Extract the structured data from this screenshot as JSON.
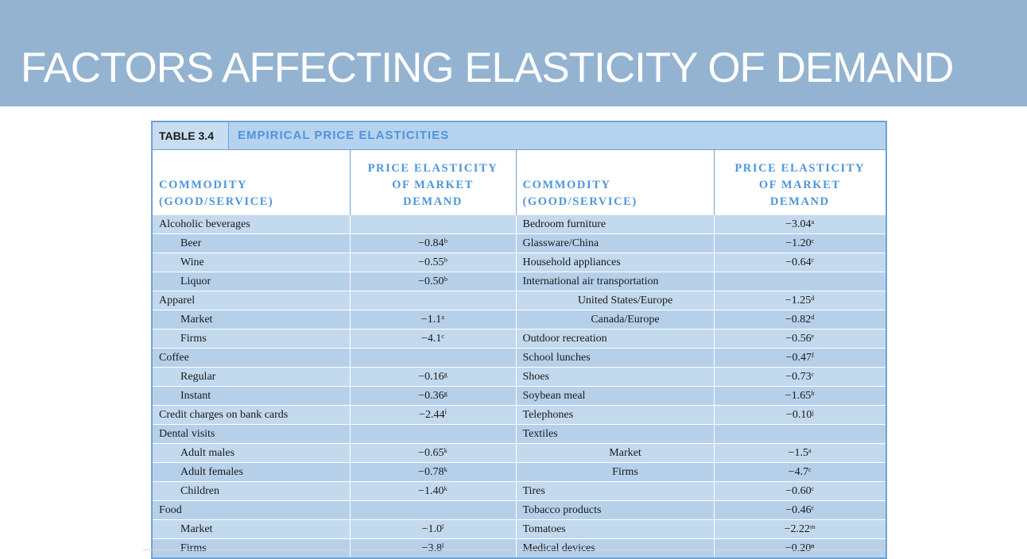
{
  "slide": {
    "title": "FACTORS AFFECTING ELASTICITY OF DEMAND"
  },
  "table": {
    "number": "TABLE 3.4",
    "title": "EMPIRICAL PRICE ELASTICITIES",
    "headers": {
      "commodity": [
        "COMMODITY",
        "(GOOD/SERVICE)"
      ],
      "elasticity": [
        "PRICE ELASTICITY",
        "OF MARKET",
        "DEMAND"
      ]
    },
    "rows": [
      {
        "l": "Alcoholic beverages",
        "li": false,
        "lv": "",
        "r": "Bedroom furniture",
        "ri": false,
        "rv": "−3.04ᵃ"
      },
      {
        "l": "Beer",
        "li": true,
        "lv": "−0.84ᵇ",
        "r": "Glassware/China",
        "ri": false,
        "rv": "−1.20ᶜ"
      },
      {
        "l": "Wine",
        "li": true,
        "lv": "−0.55ᵇ",
        "r": "Household appliances",
        "ri": false,
        "rv": "−0.64ᶜ"
      },
      {
        "l": "Liquor",
        "li": true,
        "lv": "−0.50ᵇ",
        "r": "International air transportation",
        "ri": false,
        "rv": ""
      },
      {
        "l": "Apparel",
        "li": false,
        "lv": "",
        "r": "United States/Europe",
        "ri": true,
        "rv": "−1.25ᵈ"
      },
      {
        "l": "Market",
        "li": true,
        "lv": "−1.1ᵃ",
        "r": "Canada/Europe",
        "ri": true,
        "rv": "−0.82ᵈ"
      },
      {
        "l": "Firms",
        "li": true,
        "lv": "−4.1ᶜ",
        "r": "Outdoor recreation",
        "ri": false,
        "rv": "−0.56ᵉ"
      },
      {
        "l": "Coffee",
        "li": false,
        "lv": "",
        "r": "School lunches",
        "ri": false,
        "rv": "−0.47ᶠ"
      },
      {
        "l": "Regular",
        "li": true,
        "lv": "−0.16ᵍ",
        "r": "Shoes",
        "ri": false,
        "rv": "−0.73ᶜ"
      },
      {
        "l": "Instant",
        "li": true,
        "lv": "−0.36ᵍ",
        "r": "Soybean meal",
        "ri": false,
        "rv": "−1.65ʰ"
      },
      {
        "l": "Credit charges on bank cards",
        "li": false,
        "lv": "−2.44ⁱ",
        "r": "Telephones",
        "ri": false,
        "rv": "−0.10ʲ"
      },
      {
        "l": "Dental visits",
        "li": false,
        "lv": "",
        "r": "Textiles",
        "ri": false,
        "rv": ""
      },
      {
        "l": "Adult males",
        "li": true,
        "lv": "−0.65ᵏ",
        "r": "Market",
        "ri": true,
        "rv": "−1.5ᵃ"
      },
      {
        "l": "Adult females",
        "li": true,
        "lv": "−0.78ᵏ",
        "r": "Firms",
        "ri": true,
        "rv": "−4.7ᶜ"
      },
      {
        "l": "Children",
        "li": true,
        "lv": "−1.40ᵏ",
        "r": "Tires",
        "ri": false,
        "rv": "−0.60ᶜ"
      },
      {
        "l": "Food",
        "li": false,
        "lv": "",
        "r": "Tobacco products",
        "ri": false,
        "rv": "−0.46ᶜ"
      },
      {
        "l": "Market",
        "li": true,
        "lv": "−1.0ˡ",
        "r": "Tomatoes",
        "ri": false,
        "rv": "−2.22ᵐ"
      },
      {
        "l": "Firms",
        "li": true,
        "lv": "−3.8ˡ",
        "r": "Medical devices",
        "ri": false,
        "rv": "−0.20ⁿ"
      }
    ]
  }
}
